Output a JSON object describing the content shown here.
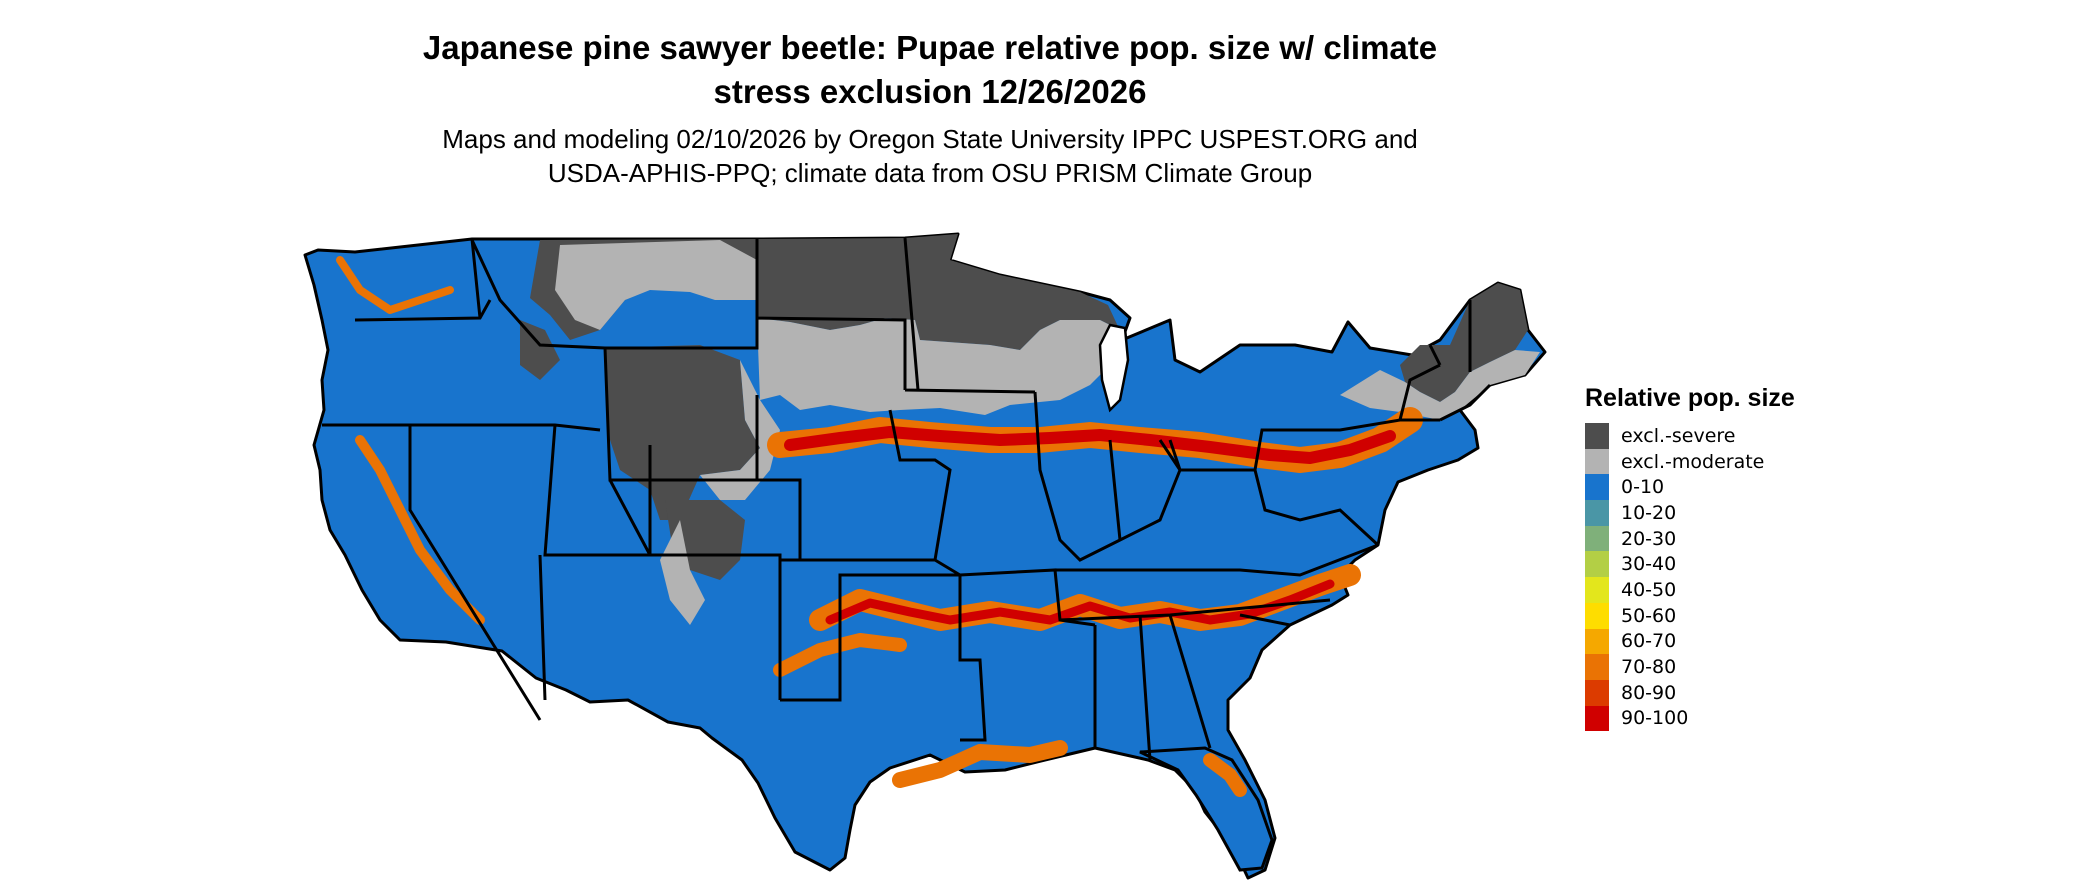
{
  "title_line1": "Japanese pine sawyer beetle: Pupae relative pop. size w/ climate",
  "title_line2": "stress exclusion 12/26/2026",
  "subtitle_line1": "Maps and modeling 02/10/2026 by Oregon State University IPPC USPEST.ORG and",
  "subtitle_line2": "USDA-APHIS-PPQ; climate data from OSU PRISM Climate Group",
  "legend": {
    "title": "Relative pop. size",
    "items": [
      {
        "label": "excl.-severe",
        "color": "#4d4d4d"
      },
      {
        "label": "excl.-moderate",
        "color": "#b3b3b3"
      },
      {
        "label": "0-10",
        "color": "#1874cd"
      },
      {
        "label": "10-20",
        "color": "#4a96a6"
      },
      {
        "label": "20-30",
        "color": "#7fb07a"
      },
      {
        "label": "30-40",
        "color": "#b3cf45"
      },
      {
        "label": "40-50",
        "color": "#e3e61c"
      },
      {
        "label": "50-60",
        "color": "#fedd00"
      },
      {
        "label": "60-70",
        "color": "#f5a800"
      },
      {
        "label": "70-80",
        "color": "#ea7304"
      },
      {
        "label": "80-90",
        "color": "#dc3b00"
      },
      {
        "label": "90-100",
        "color": "#d00000"
      }
    ]
  }
}
